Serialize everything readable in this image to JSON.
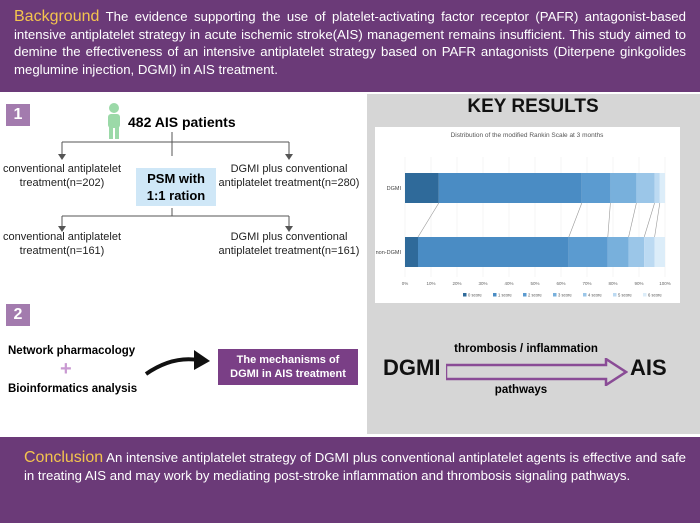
{
  "background": {
    "label": "Background",
    "text": "The evidence supporting the use of platelet-activating factor receptor (PAFR) antagonist-based intensive antiplatelet strategy in acute ischemic stroke(AIS) management remains insufficient. This study aimed to demine the effectiveness of an intensive antiplatelet strategy based on PAFR antagonists (Diterpene ginkgolides meglumine injection, DGMI) in AIS treatment."
  },
  "step1": {
    "number": "1",
    "patients": "482 AIS patients",
    "left_top": "conventional antiplatelet treatment(n=202)",
    "right_top": "DGMI plus conventional antiplatelet treatment(n=280)",
    "psm": "PSM with 1:1 ration",
    "left_bottom": "conventional antiplatelet treatment(n=161)",
    "right_bottom": "DGMI plus conventional antiplatelet treatment(n=161)"
  },
  "step2": {
    "number": "2",
    "method1": "Network pharmacology",
    "plus": "+",
    "method2": "Bioinformatics analysis",
    "mechanisms": "The mechanisms of DGMI in AIS treatment"
  },
  "key_results": {
    "title": "KEY RESULTS",
    "pathway_from": "DGMI",
    "pathway_to": "AIS",
    "pathway_top": "thrombosis / inflammation",
    "pathway_bottom": "pathways"
  },
  "conclusion": {
    "label": "Conclusion",
    "text": "An intensive antiplatelet strategy of DGMI plus conventional antiplatelet agents is effective and safe in treating AIS and may work by mediating post-stroke inflammation and thrombosis signaling pathways."
  },
  "chart_data": {
    "type": "bar",
    "orientation": "horizontal-stacked-100",
    "title": "Distribution of the modified Rankin Scale at 3 months",
    "categories": [
      "DGMI",
      "non-DGMI"
    ],
    "series": [
      {
        "name": "0 score",
        "values": [
          13,
          5
        ],
        "color": "#2f6a9a"
      },
      {
        "name": "1 score",
        "values": [
          55,
          58
        ],
        "color": "#4a8cc4"
      },
      {
        "name": "2 score",
        "values": [
          11,
          15
        ],
        "color": "#5b9bd0"
      },
      {
        "name": "3 score",
        "values": [
          10,
          8
        ],
        "color": "#78b0dc"
      },
      {
        "name": "4 score",
        "values": [
          7,
          6
        ],
        "color": "#9bc6e8"
      },
      {
        "name": "5 score",
        "values": [
          2,
          4
        ],
        "color": "#bcdaf2"
      },
      {
        "name": "6 score",
        "values": [
          2,
          4
        ],
        "color": "#dcedf9"
      }
    ],
    "xticks": [
      "0%",
      "10%",
      "20%",
      "30%",
      "40%",
      "50%",
      "60%",
      "70%",
      "80%",
      "90%",
      "100%"
    ],
    "xlim": [
      0,
      100
    ]
  }
}
